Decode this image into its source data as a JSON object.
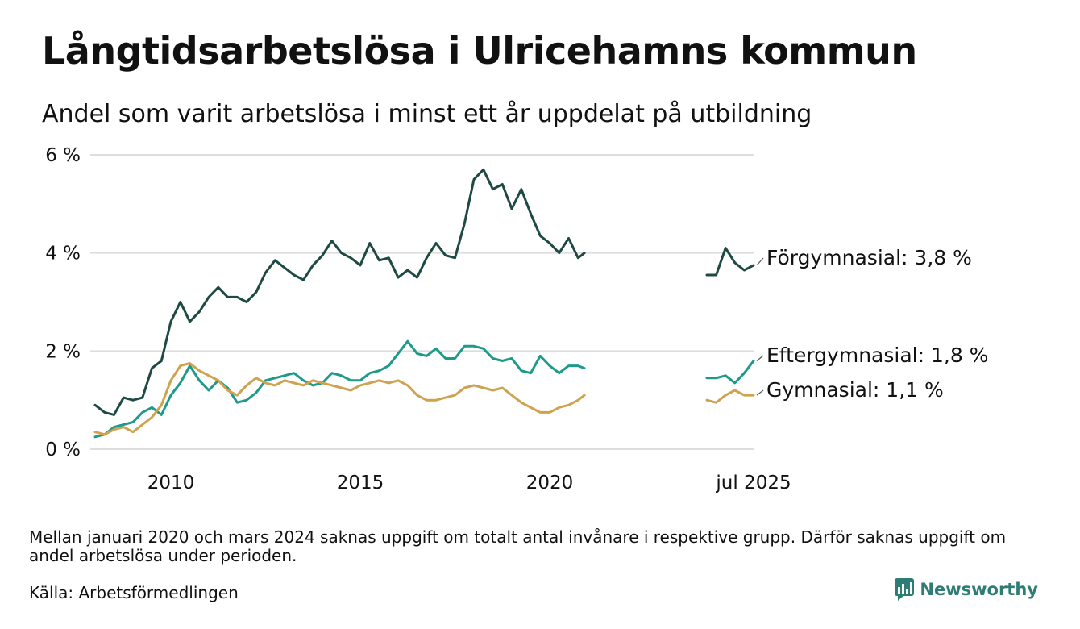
{
  "title": "Långtidsarbetslösa i Ulricehamns kommun",
  "subtitle": "Andel som varit arbetslösa i minst ett år uppdelat på utbildning",
  "note": "Mellan januari 2020 och mars 2024 saknas uppgift om totalt antal invånare i respektive grupp. Därför saknas uppgift om andel arbetslösa under perioden.",
  "source": "Källa: Arbetsförmedlingen",
  "brand": "Newsworthy",
  "colors": {
    "forgymnasial": "#1f4a44",
    "eftergymnasial": "#1e9a8a",
    "gymnasial": "#cfa24f",
    "grid": "#dddddd",
    "brand": "#2e7d74"
  },
  "chart_data": {
    "type": "line",
    "title": "Långtidsarbetslösa i Ulricehamns kommun",
    "xlabel": "",
    "ylabel": "",
    "ylim": [
      0,
      6
    ],
    "yticks": [
      0,
      2,
      4,
      6
    ],
    "ytick_labels": [
      "0 %",
      "2 %",
      "4 %",
      "6 %"
    ],
    "xtick_labels": [
      {
        "label": "2010",
        "x": "2010-01"
      },
      {
        "label": "2015",
        "x": "2015-01"
      },
      {
        "label": "2020",
        "x": "2020-01"
      },
      {
        "label": "jul 2025",
        "x": "2025-07"
      }
    ],
    "x_axis_break": true,
    "grid": "horizontal",
    "end_labels": true,
    "series": [
      {
        "name": "Förgymnasial",
        "key": "forgymnasial",
        "end_label": "Förgymnasial: 3,8 %",
        "segments": [
          {
            "x": [
              "2008-01",
              "2008-04",
              "2008-07",
              "2008-10",
              "2009-01",
              "2009-04",
              "2009-07",
              "2009-10",
              "2010-01",
              "2010-04",
              "2010-07",
              "2010-10",
              "2011-01",
              "2011-04",
              "2011-07",
              "2011-10",
              "2012-01",
              "2012-04",
              "2012-07",
              "2012-10",
              "2013-01",
              "2013-04",
              "2013-07",
              "2013-10",
              "2014-01",
              "2014-04",
              "2014-07",
              "2014-10",
              "2015-01",
              "2015-04",
              "2015-07",
              "2015-10",
              "2016-01",
              "2016-04",
              "2016-07",
              "2016-10",
              "2017-01",
              "2017-04",
              "2017-07",
              "2017-10",
              "2018-01",
              "2018-04",
              "2018-07",
              "2018-10",
              "2019-01",
              "2019-04",
              "2019-07",
              "2019-10",
              "2020-01",
              "2020-04",
              "2020-07",
              "2020-10",
              "2020-12"
            ],
            "y": [
              0.9,
              0.75,
              0.7,
              1.05,
              1.0,
              1.05,
              1.65,
              1.8,
              2.6,
              3.0,
              2.6,
              2.8,
              3.1,
              3.3,
              3.1,
              3.1,
              3.0,
              3.2,
              3.6,
              3.85,
              3.7,
              3.55,
              3.45,
              3.75,
              3.95,
              4.25,
              4.0,
              3.9,
              3.75,
              4.2,
              3.85,
              3.9,
              3.5,
              3.65,
              3.5,
              3.9,
              4.2,
              3.95,
              3.9,
              4.6,
              5.5,
              5.7,
              5.3,
              5.4,
              4.9,
              5.3,
              4.8,
              4.35,
              4.2,
              4.0,
              4.3,
              3.9,
              4.0
            ]
          },
          {
            "x": [
              "2024-04",
              "2024-07",
              "2024-10",
              "2025-01",
              "2025-04",
              "2025-07"
            ],
            "y": [
              3.55,
              3.55,
              4.1,
              3.8,
              3.65,
              3.75
            ]
          }
        ]
      },
      {
        "name": "Eftergymnasial",
        "key": "eftergymnasial",
        "end_label": "Eftergymnasial: 1,8 %",
        "segments": [
          {
            "x": [
              "2008-01",
              "2008-04",
              "2008-07",
              "2008-10",
              "2009-01",
              "2009-04",
              "2009-07",
              "2009-10",
              "2010-01",
              "2010-04",
              "2010-07",
              "2010-10",
              "2011-01",
              "2011-04",
              "2011-07",
              "2011-10",
              "2012-01",
              "2012-04",
              "2012-07",
              "2012-10",
              "2013-01",
              "2013-04",
              "2013-07",
              "2013-10",
              "2014-01",
              "2014-04",
              "2014-07",
              "2014-10",
              "2015-01",
              "2015-04",
              "2015-07",
              "2015-10",
              "2016-01",
              "2016-04",
              "2016-07",
              "2016-10",
              "2017-01",
              "2017-04",
              "2017-07",
              "2017-10",
              "2018-01",
              "2018-04",
              "2018-07",
              "2018-10",
              "2019-01",
              "2019-04",
              "2019-07",
              "2019-10",
              "2020-01",
              "2020-04",
              "2020-07",
              "2020-10",
              "2020-12"
            ],
            "y": [
              0.25,
              0.3,
              0.45,
              0.5,
              0.55,
              0.75,
              0.85,
              0.7,
              1.1,
              1.35,
              1.7,
              1.4,
              1.2,
              1.4,
              1.25,
              0.95,
              1.0,
              1.15,
              1.4,
              1.45,
              1.5,
              1.55,
              1.4,
              1.3,
              1.35,
              1.55,
              1.5,
              1.4,
              1.4,
              1.55,
              1.6,
              1.7,
              1.95,
              2.2,
              1.95,
              1.9,
              2.05,
              1.85,
              1.85,
              2.1,
              2.1,
              2.05,
              1.85,
              1.8,
              1.85,
              1.6,
              1.55,
              1.9,
              1.7,
              1.55,
              1.7,
              1.7,
              1.65
            ]
          },
          {
            "x": [
              "2024-04",
              "2024-07",
              "2024-10",
              "2025-01",
              "2025-04",
              "2025-07"
            ],
            "y": [
              1.45,
              1.45,
              1.5,
              1.35,
              1.55,
              1.8
            ]
          }
        ]
      },
      {
        "name": "Gymnasial",
        "key": "gymnasial",
        "end_label": "Gymnasial: 1,1 %",
        "segments": [
          {
            "x": [
              "2008-01",
              "2008-04",
              "2008-07",
              "2008-10",
              "2009-01",
              "2009-04",
              "2009-07",
              "2009-10",
              "2010-01",
              "2010-04",
              "2010-07",
              "2010-10",
              "2011-01",
              "2011-04",
              "2011-07",
              "2011-10",
              "2012-01",
              "2012-04",
              "2012-07",
              "2012-10",
              "2013-01",
              "2013-04",
              "2013-07",
              "2013-10",
              "2014-01",
              "2014-04",
              "2014-07",
              "2014-10",
              "2015-01",
              "2015-04",
              "2015-07",
              "2015-10",
              "2016-01",
              "2016-04",
              "2016-07",
              "2016-10",
              "2017-01",
              "2017-04",
              "2017-07",
              "2017-10",
              "2018-01",
              "2018-04",
              "2018-07",
              "2018-10",
              "2019-01",
              "2019-04",
              "2019-07",
              "2019-10",
              "2020-01",
              "2020-04",
              "2020-07",
              "2020-10",
              "2020-12"
            ],
            "y": [
              0.35,
              0.3,
              0.4,
              0.45,
              0.35,
              0.5,
              0.65,
              0.9,
              1.4,
              1.7,
              1.75,
              1.6,
              1.5,
              1.4,
              1.2,
              1.1,
              1.3,
              1.45,
              1.35,
              1.3,
              1.4,
              1.35,
              1.3,
              1.4,
              1.35,
              1.3,
              1.25,
              1.2,
              1.3,
              1.35,
              1.4,
              1.35,
              1.4,
              1.3,
              1.1,
              1.0,
              1.0,
              1.05,
              1.1,
              1.25,
              1.3,
              1.25,
              1.2,
              1.25,
              1.1,
              0.95,
              0.85,
              0.75,
              0.75,
              0.85,
              0.9,
              1.0,
              1.1
            ]
          },
          {
            "x": [
              "2024-04",
              "2024-07",
              "2024-10",
              "2025-01",
              "2025-04",
              "2025-07"
            ],
            "y": [
              1.0,
              0.95,
              1.1,
              1.2,
              1.1,
              1.1
            ]
          }
        ]
      }
    ]
  }
}
